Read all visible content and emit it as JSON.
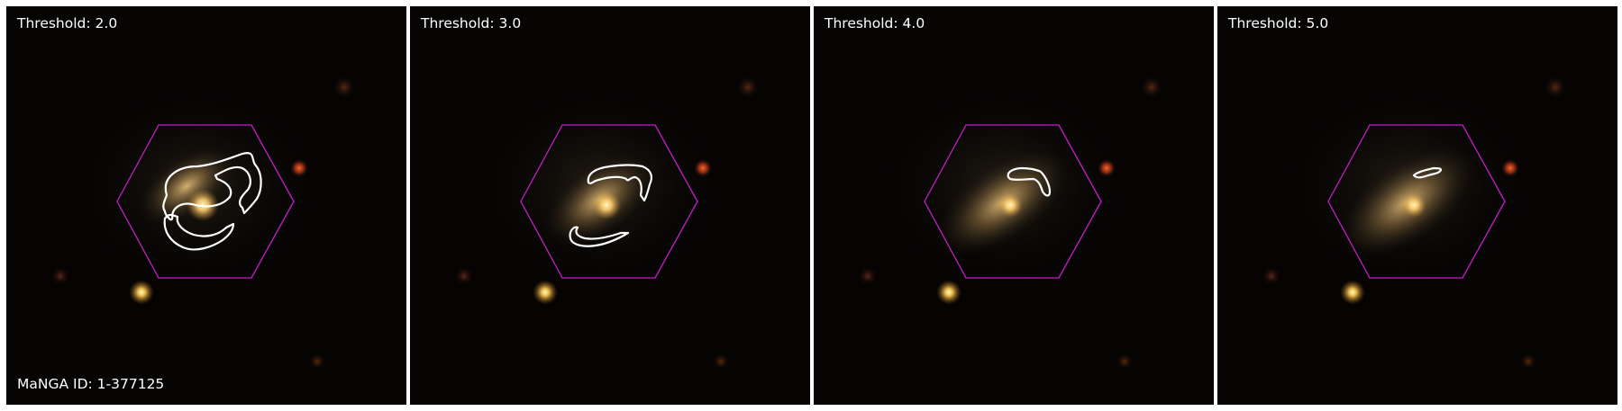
{
  "colors": {
    "sky": "#050403",
    "galaxy_core": "#ffe08a",
    "galaxy_disk": "#a8874f",
    "hexagon": "#c81cc8",
    "contour": "#ffffff",
    "label_text": "#ffffff"
  },
  "galaxy": {
    "manga_id_label": "MaNGA ID: 1-377125"
  },
  "panels": [
    {
      "threshold_label": "Threshold: 2.0",
      "contour_icon": "contour-outline-icon"
    },
    {
      "threshold_label": "Threshold: 3.0",
      "contour_icon": "contour-outline-icon"
    },
    {
      "threshold_label": "Threshold: 4.0",
      "contour_icon": "contour-outline-icon"
    },
    {
      "threshold_label": "Threshold: 5.0",
      "contour_icon": "contour-outline-icon"
    }
  ]
}
